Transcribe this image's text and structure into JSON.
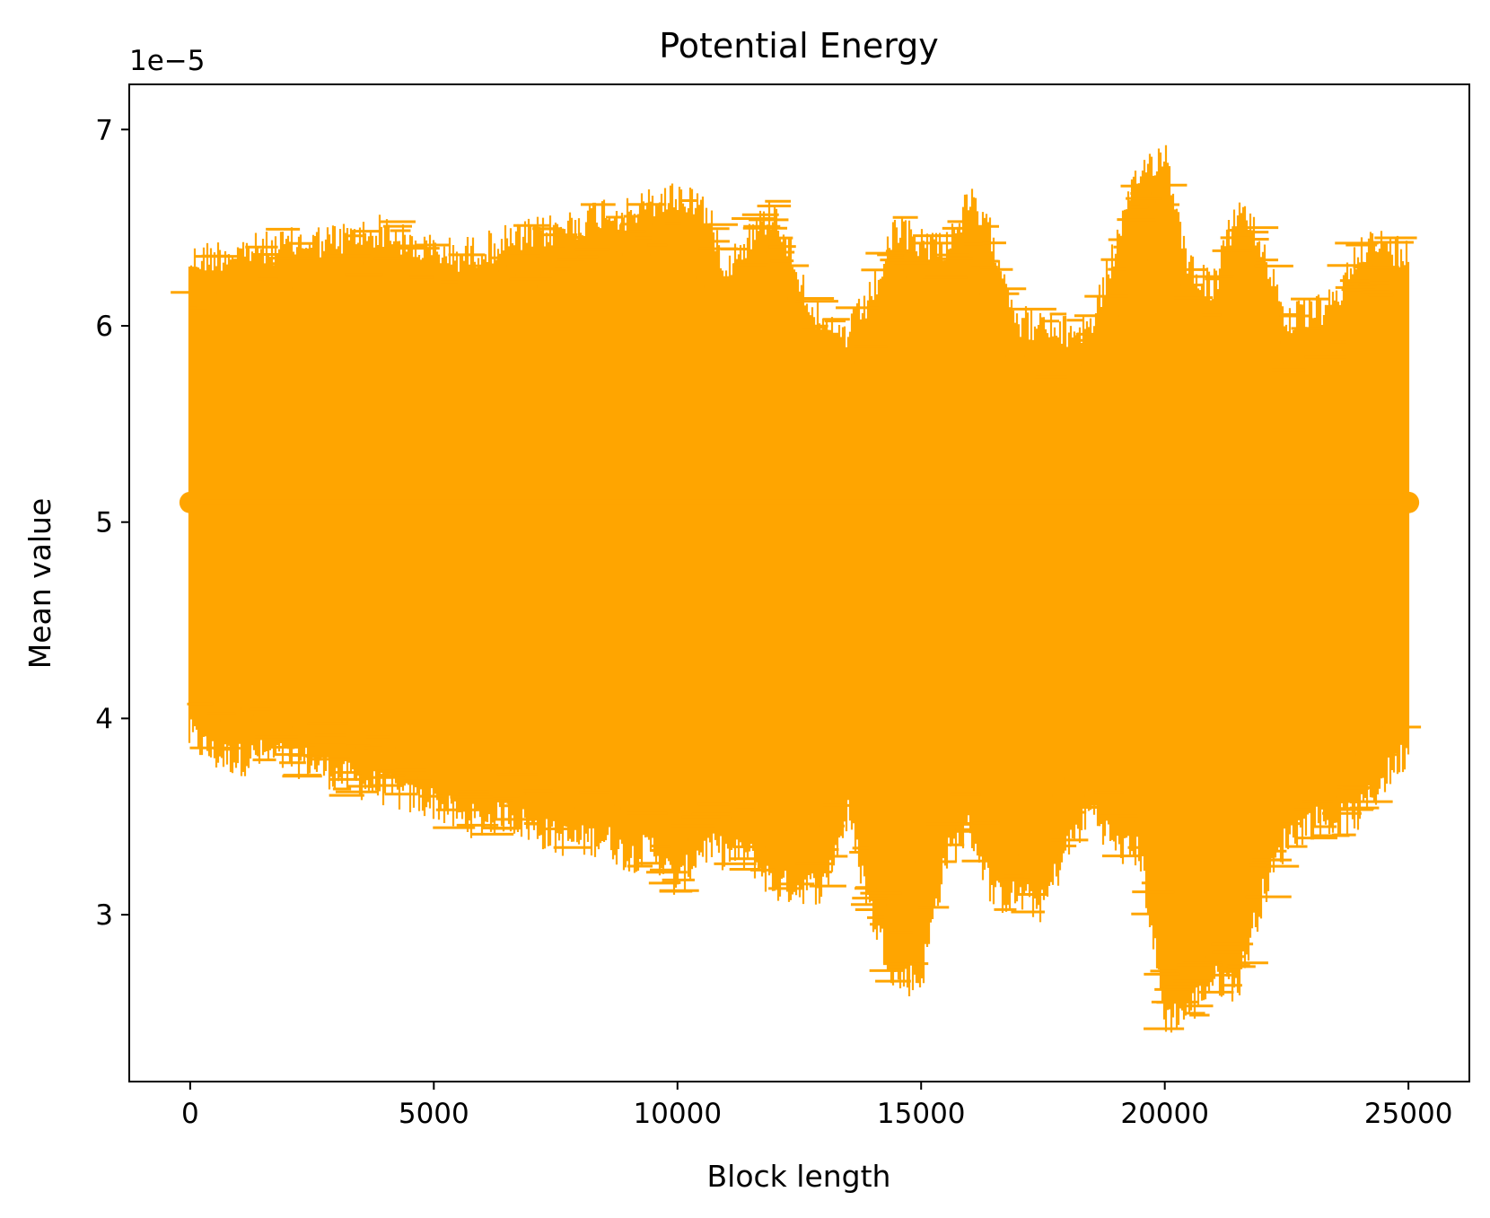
{
  "chart_data": {
    "type": "errorbar",
    "title": "Potential Energy",
    "xlabel": "Block length",
    "ylabel": "Mean value",
    "y_offset_label": "1e−5",
    "xlim": [
      -1250,
      26250
    ],
    "ylim": [
      2.15,
      7.23
    ],
    "y_scale_factor": 1e-05,
    "x_ticks": [
      0,
      5000,
      10000,
      15000,
      20000,
      25000
    ],
    "x_tick_labels": [
      "0",
      "5000",
      "10000",
      "15000",
      "20000",
      "25000"
    ],
    "y_ticks": [
      3,
      4,
      5,
      6,
      7
    ],
    "y_tick_labels": [
      "3",
      "4",
      "5",
      "6",
      "7"
    ],
    "grid": false,
    "legend": "none",
    "series": [
      {
        "color": "#FFA500",
        "mean": 5.1,
        "x_range": [
          0,
          25000
        ],
        "x_step": 1,
        "envelope": {
          "x": [
            0,
            500,
            1000,
            1500,
            2000,
            2500,
            3000,
            3500,
            4000,
            4500,
            5000,
            5500,
            6000,
            6500,
            7000,
            7500,
            8000,
            8500,
            9000,
            9500,
            10000,
            10500,
            11000,
            11500,
            12000,
            12500,
            13000,
            13500,
            14000,
            14500,
            15000,
            15500,
            16000,
            16500,
            17000,
            17500,
            18000,
            18500,
            19000,
            19500,
            20000,
            20500,
            21000,
            21500,
            22000,
            22500,
            23000,
            23500,
            24000,
            24500,
            25000
          ],
          "upper": [
            6.42,
            6.45,
            6.47,
            6.48,
            6.5,
            6.52,
            6.53,
            6.55,
            6.58,
            6.5,
            6.47,
            6.45,
            6.48,
            6.52,
            6.55,
            6.58,
            6.62,
            6.68,
            6.65,
            6.72,
            6.75,
            6.72,
            6.4,
            6.55,
            6.68,
            6.35,
            6.05,
            6.05,
            6.25,
            6.58,
            6.52,
            6.5,
            6.72,
            6.52,
            6.12,
            6.08,
            6.05,
            6.1,
            6.5,
            6.88,
            6.98,
            6.4,
            6.28,
            6.7,
            6.5,
            6.12,
            6.15,
            6.2,
            6.5,
            6.5,
            6.45
          ],
          "lower": [
            3.82,
            3.72,
            3.7,
            3.72,
            3.7,
            3.68,
            3.62,
            3.58,
            3.55,
            3.5,
            3.48,
            3.4,
            3.38,
            3.42,
            3.35,
            3.3,
            3.28,
            3.3,
            3.2,
            3.25,
            3.05,
            3.25,
            3.22,
            3.2,
            3.05,
            3.05,
            3.05,
            3.42,
            2.9,
            2.58,
            2.58,
            3.2,
            3.35,
            3.0,
            3.0,
            2.95,
            3.25,
            3.45,
            3.25,
            3.22,
            2.38,
            2.42,
            2.58,
            2.55,
            3.0,
            3.3,
            3.38,
            3.38,
            3.42,
            3.6,
            3.75
          ]
        }
      }
    ]
  }
}
